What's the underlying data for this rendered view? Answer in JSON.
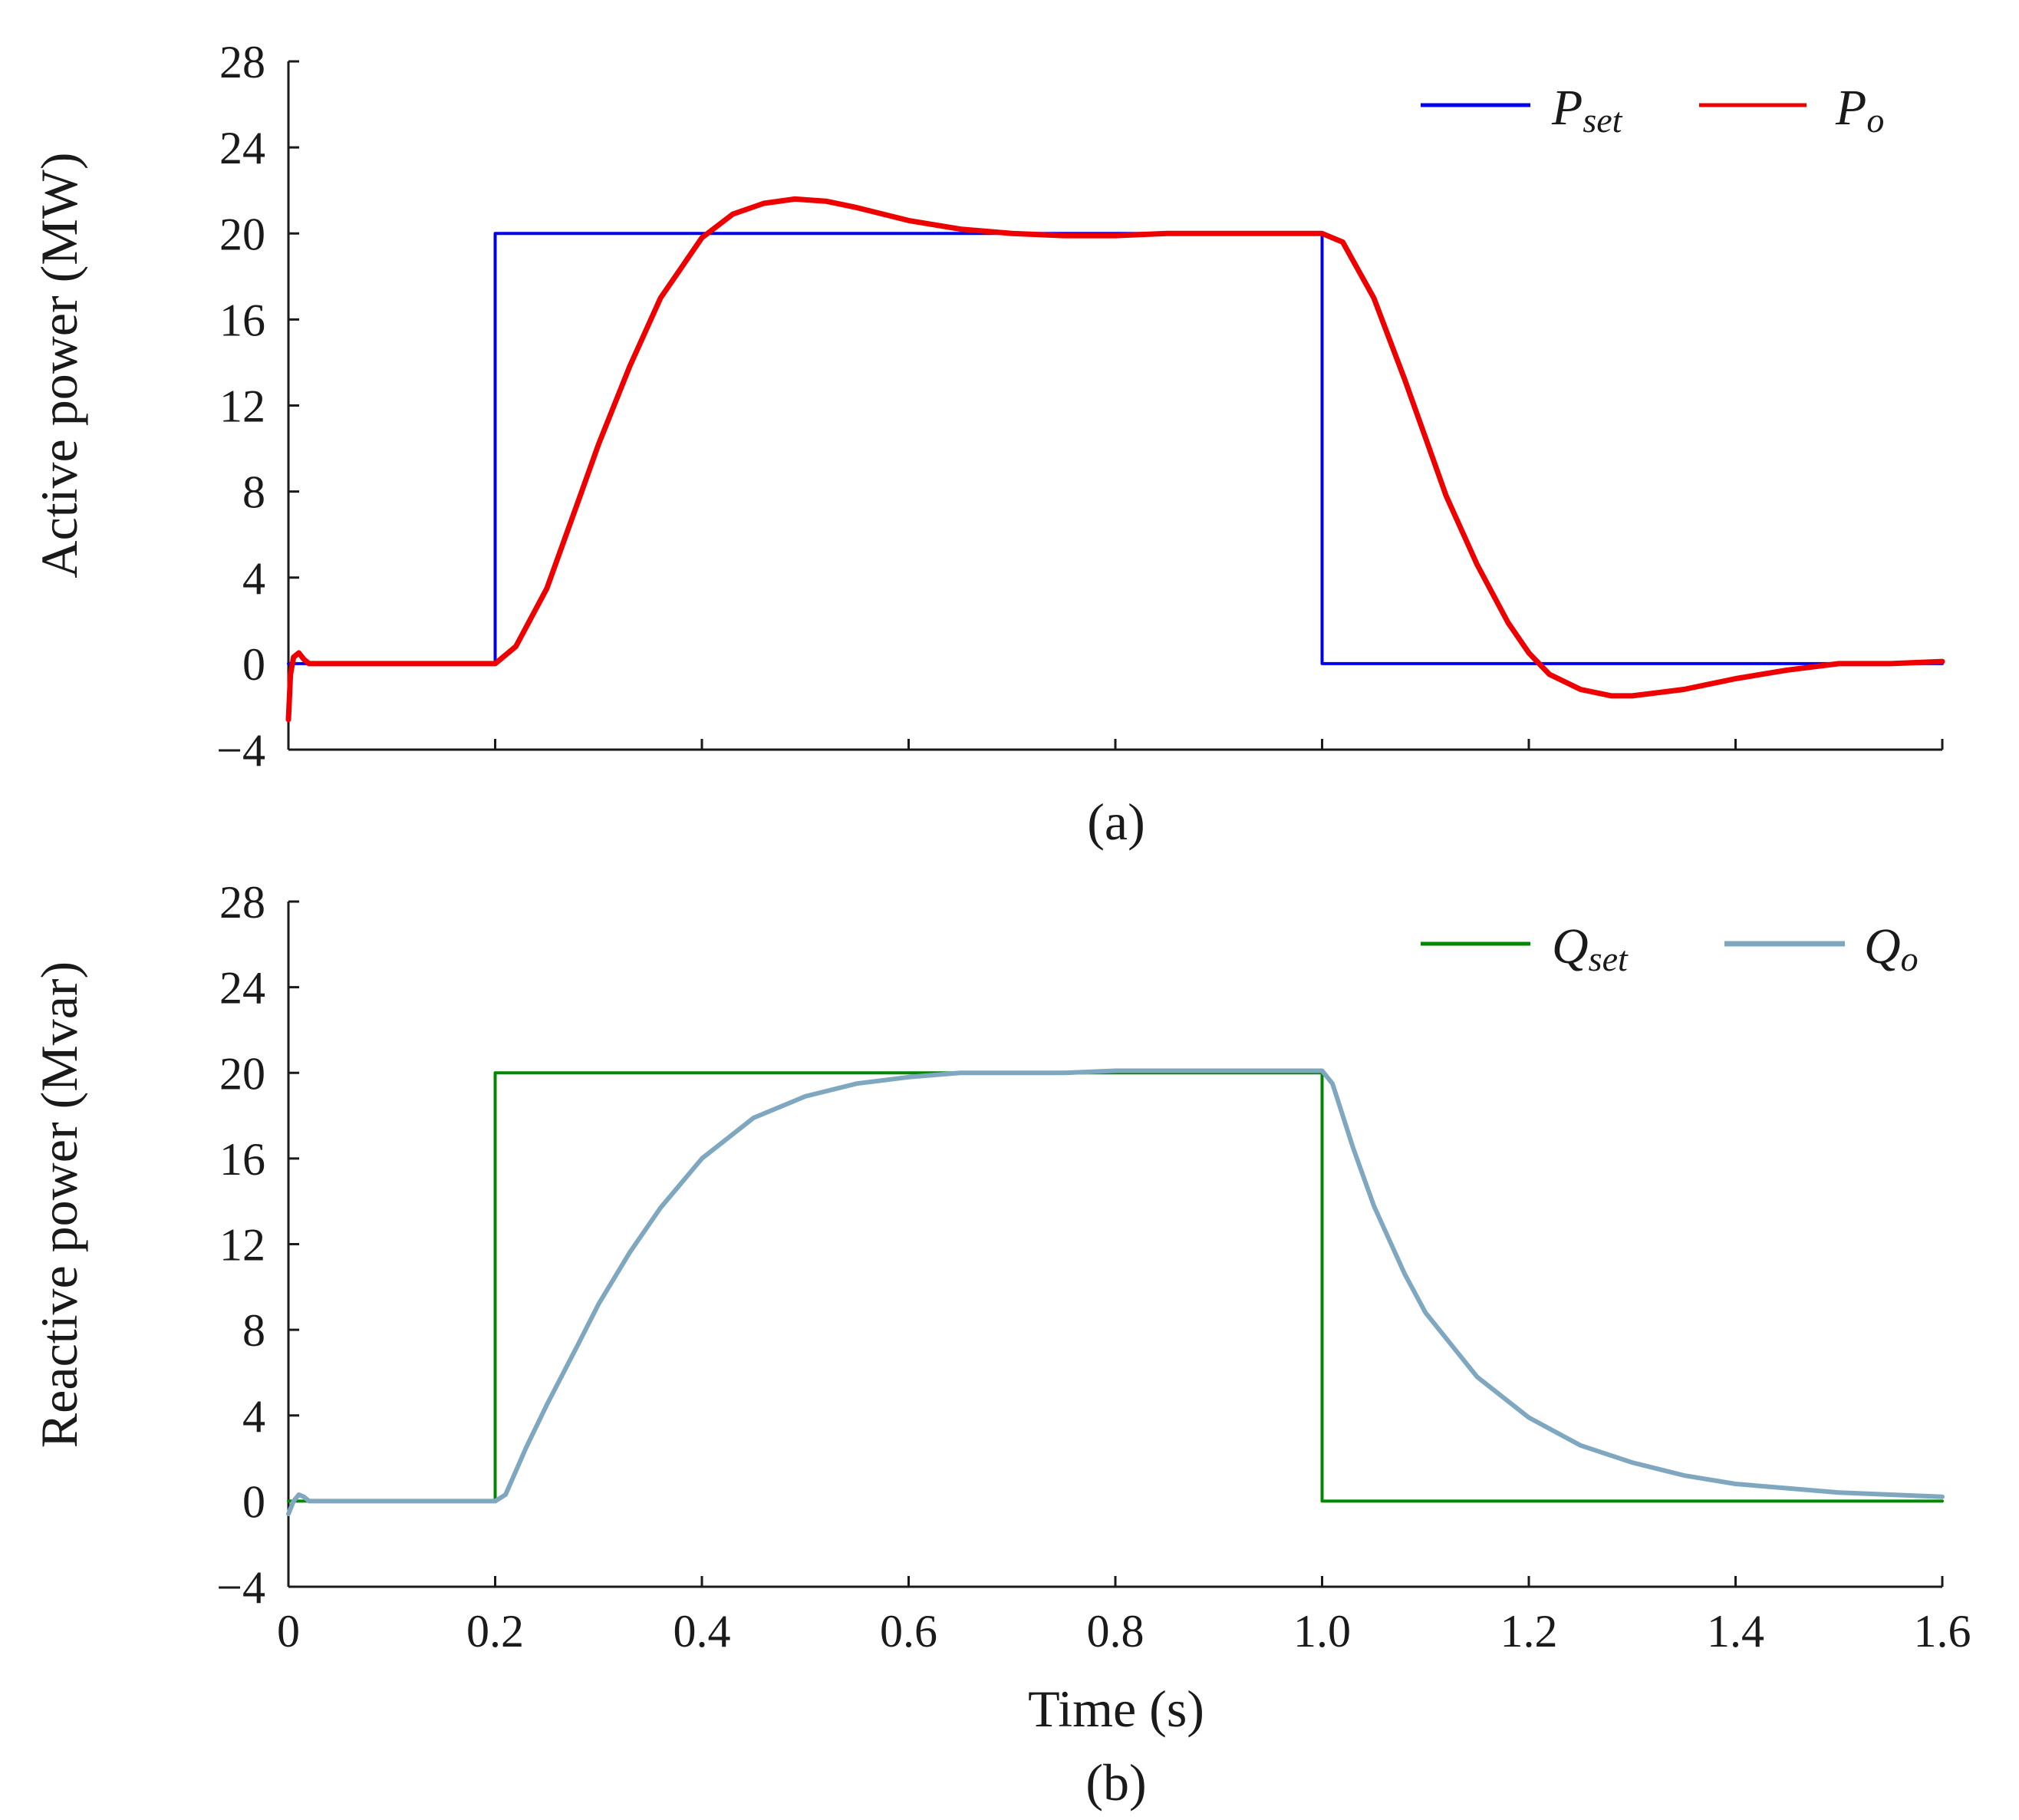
{
  "chart_data": [
    {
      "type": "line",
      "panel_label": "(a)",
      "ylabel": "Active power (MW)",
      "xlabel": "",
      "xlim": [
        0,
        1.6
      ],
      "ylim": [
        -4,
        28
      ],
      "yticks": [
        "−4",
        "0",
        "4",
        "8",
        "12",
        "16",
        "20",
        "24",
        "28"
      ],
      "ytick_values": [
        -4,
        0,
        4,
        8,
        12,
        16,
        20,
        24,
        28
      ],
      "xtick_values": [
        0,
        0.2,
        0.4,
        0.6,
        0.8,
        1.0,
        1.2,
        1.4,
        1.6
      ],
      "legend_position": "top-right",
      "series": [
        {
          "name": "P_set",
          "label_main": "P",
          "label_sub": "set",
          "color": "#0000ee",
          "x": [
            0,
            0.2,
            0.2,
            1.0,
            1.0,
            1.6
          ],
          "y": [
            0,
            0,
            20,
            20,
            0,
            0
          ]
        },
        {
          "name": "P_o",
          "label_main": "P",
          "label_sub": "o",
          "color": "#ee0000",
          "x": [
            0,
            0.002,
            0.005,
            0.01,
            0.015,
            0.02,
            0.05,
            0.1,
            0.15,
            0.2,
            0.22,
            0.25,
            0.28,
            0.3,
            0.33,
            0.36,
            0.4,
            0.43,
            0.46,
            0.49,
            0.52,
            0.55,
            0.6,
            0.65,
            0.7,
            0.75,
            0.8,
            0.85,
            0.9,
            0.95,
            1.0,
            1.02,
            1.05,
            1.08,
            1.1,
            1.12,
            1.15,
            1.18,
            1.2,
            1.22,
            1.25,
            1.28,
            1.3,
            1.35,
            1.4,
            1.45,
            1.5,
            1.55,
            1.6
          ],
          "y": [
            -2.6,
            -0.5,
            0.3,
            0.5,
            0.2,
            0,
            0,
            0,
            0,
            0,
            0.8,
            3.5,
            7.5,
            10.2,
            13.8,
            17,
            19.8,
            20.9,
            21.4,
            21.6,
            21.5,
            21.2,
            20.6,
            20.2,
            20.0,
            19.9,
            19.9,
            20.0,
            20.0,
            20.0,
            20.0,
            19.6,
            17,
            13.2,
            10.5,
            7.8,
            4.6,
            1.9,
            0.5,
            -0.5,
            -1.2,
            -1.5,
            -1.5,
            -1.2,
            -0.7,
            -0.3,
            0,
            0,
            0.1
          ]
        }
      ]
    },
    {
      "type": "line",
      "panel_label": "(b)",
      "ylabel": "Reactive power (Mvar)",
      "xlabel": "Time (s)",
      "xlim": [
        0,
        1.6
      ],
      "ylim": [
        -4,
        28
      ],
      "yticks": [
        "−4",
        "0",
        "4",
        "8",
        "12",
        "16",
        "20",
        "24",
        "28"
      ],
      "ytick_values": [
        -4,
        0,
        4,
        8,
        12,
        16,
        20,
        24,
        28
      ],
      "xticks": [
        "0",
        "0.2",
        "0.4",
        "0.6",
        "0.8",
        "1.0",
        "1.2",
        "1.4",
        "1.6"
      ],
      "xtick_values": [
        0,
        0.2,
        0.4,
        0.6,
        0.8,
        1.0,
        1.2,
        1.4,
        1.6
      ],
      "legend_position": "top-right",
      "series": [
        {
          "name": "Q_set",
          "label_main": "Q",
          "label_sub": "set",
          "color": "#008800",
          "x": [
            0,
            0.2,
            0.2,
            1.0,
            1.0,
            1.6
          ],
          "y": [
            0,
            0,
            20,
            20,
            0,
            0
          ]
        },
        {
          "name": "Q_o",
          "label_main": "Q",
          "label_sub": "o",
          "color": "#7fa8c0",
          "x": [
            0,
            0.005,
            0.01,
            0.015,
            0.02,
            0.05,
            0.1,
            0.15,
            0.2,
            0.21,
            0.23,
            0.25,
            0.28,
            0.3,
            0.33,
            0.36,
            0.4,
            0.45,
            0.5,
            0.55,
            0.6,
            0.65,
            0.7,
            0.75,
            0.8,
            0.85,
            0.9,
            0.95,
            1.0,
            1.01,
            1.03,
            1.05,
            1.08,
            1.1,
            1.15,
            1.2,
            1.25,
            1.3,
            1.35,
            1.4,
            1.45,
            1.5,
            1.55,
            1.6
          ],
          "y": [
            -0.6,
            0,
            0.3,
            0.2,
            0,
            0,
            0,
            0,
            0,
            0.3,
            2.5,
            4.5,
            7.3,
            9.2,
            11.6,
            13.7,
            16,
            17.9,
            18.9,
            19.5,
            19.8,
            20.0,
            20.0,
            20.0,
            20.1,
            20.1,
            20.1,
            20.1,
            20.1,
            19.5,
            16.5,
            13.8,
            10.6,
            8.8,
            5.8,
            3.9,
            2.6,
            1.8,
            1.2,
            0.8,
            0.6,
            0.4,
            0.3,
            0.2
          ]
        }
      ]
    }
  ]
}
